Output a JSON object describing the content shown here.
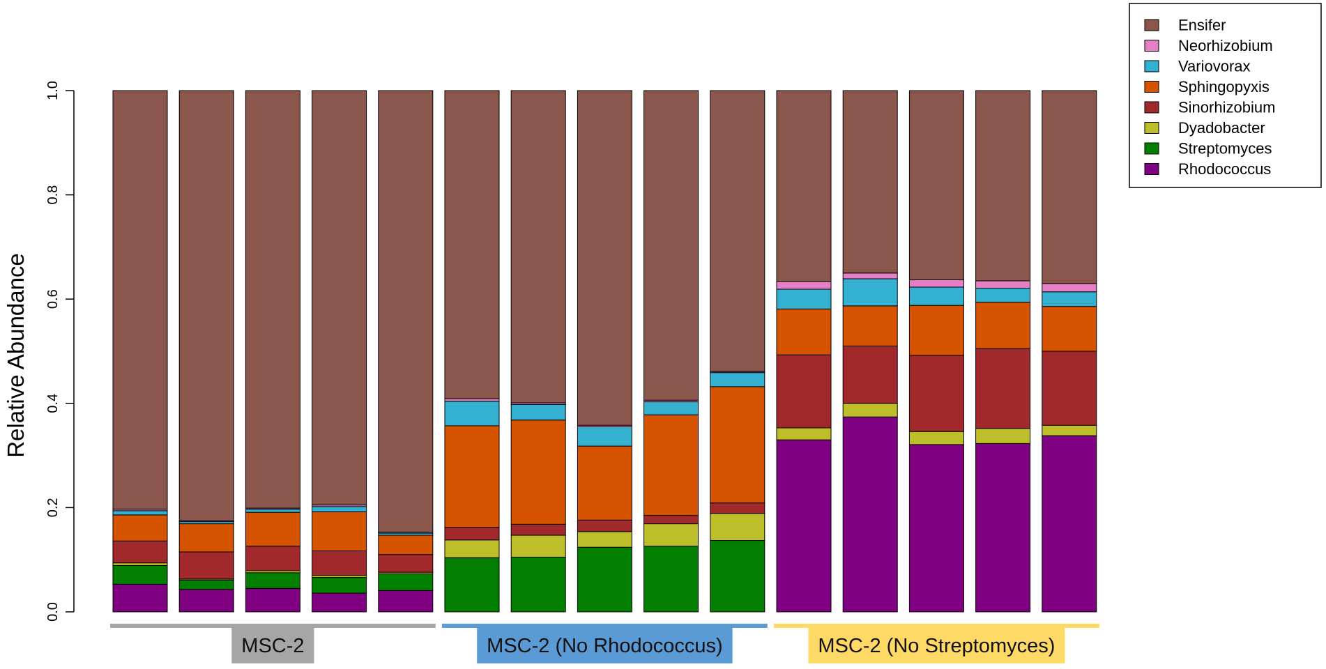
{
  "chart_data": {
    "type": "bar",
    "stacked": true,
    "ylabel": "Relative Abundance",
    "ylim": [
      0,
      1
    ],
    "yticks": [
      "0.0",
      "0.2",
      "0.4",
      "0.6",
      "0.8",
      "1.0"
    ],
    "legend_position": "top-right, outside plot",
    "legend": [
      {
        "name": "Ensifer",
        "color": "#8B564C"
      },
      {
        "name": "Neorhizobium",
        "color": "#E57FC6"
      },
      {
        "name": "Variovorax",
        "color": "#34B1D0"
      },
      {
        "name": "Sphingopyxis",
        "color": "#D65400"
      },
      {
        "name": "Sinorhizobium",
        "color": "#A1282B"
      },
      {
        "name": "Dyadobacter",
        "color": "#BEBE2A"
      },
      {
        "name": "Streptomyces",
        "color": "#027F00"
      },
      {
        "name": "Rhodococcus",
        "color": "#7F0080"
      }
    ],
    "stack_order_bottom_to_top": [
      "Rhodococcus",
      "Streptomyces",
      "Dyadobacter",
      "Sinorhizobium",
      "Sphingopyxis",
      "Variovorax",
      "Neorhizobium",
      "Ensifer"
    ],
    "groups": [
      {
        "label": "MSC-2",
        "color": "#A6A6A6",
        "bars": [
          0,
          1,
          2,
          3,
          4
        ]
      },
      {
        "label": "MSC-2 (No Rhodococcus)",
        "color": "#5B9BD5",
        "bars": [
          5,
          6,
          7,
          8,
          9
        ]
      },
      {
        "label": "MSC-2 (No Streptomyces)",
        "color": "#FFD966",
        "bars": [
          10,
          11,
          12,
          13,
          14
        ]
      }
    ],
    "bars": [
      {
        "Rhodococcus": 0.053,
        "Streptomyces": 0.036,
        "Dyadobacter": 0.005,
        "Sinorhizobium": 0.042,
        "Sphingopyxis": 0.05,
        "Variovorax": 0.008,
        "Neorhizobium": 0.003,
        "Ensifer": 0.803
      },
      {
        "Rhodococcus": 0.043,
        "Streptomyces": 0.018,
        "Dyadobacter": 0.002,
        "Sinorhizobium": 0.052,
        "Sphingopyxis": 0.054,
        "Variovorax": 0.004,
        "Neorhizobium": 0.002,
        "Ensifer": 0.825
      },
      {
        "Rhodococcus": 0.045,
        "Streptomyces": 0.03,
        "Dyadobacter": 0.004,
        "Sinorhizobium": 0.047,
        "Sphingopyxis": 0.065,
        "Variovorax": 0.006,
        "Neorhizobium": 0.002,
        "Ensifer": 0.801
      },
      {
        "Rhodococcus": 0.036,
        "Streptomyces": 0.03,
        "Dyadobacter": 0.004,
        "Sinorhizobium": 0.047,
        "Sphingopyxis": 0.075,
        "Variovorax": 0.01,
        "Neorhizobium": 0.003,
        "Ensifer": 0.795
      },
      {
        "Rhodococcus": 0.041,
        "Streptomyces": 0.032,
        "Dyadobacter": 0.003,
        "Sinorhizobium": 0.034,
        "Sphingopyxis": 0.037,
        "Variovorax": 0.004,
        "Neorhizobium": 0.002,
        "Ensifer": 0.847
      },
      {
        "Rhodococcus": 0.0,
        "Streptomyces": 0.104,
        "Dyadobacter": 0.034,
        "Sinorhizobium": 0.024,
        "Sphingopyxis": 0.195,
        "Variovorax": 0.047,
        "Neorhizobium": 0.005,
        "Ensifer": 0.591
      },
      {
        "Rhodococcus": 0.0,
        "Streptomyces": 0.105,
        "Dyadobacter": 0.042,
        "Sinorhizobium": 0.021,
        "Sphingopyxis": 0.2,
        "Variovorax": 0.03,
        "Neorhizobium": 0.003,
        "Ensifer": 0.599
      },
      {
        "Rhodococcus": 0.0,
        "Streptomyces": 0.124,
        "Dyadobacter": 0.03,
        "Sinorhizobium": 0.022,
        "Sphingopyxis": 0.142,
        "Variovorax": 0.037,
        "Neorhizobium": 0.003,
        "Ensifer": 0.642
      },
      {
        "Rhodococcus": 0.0,
        "Streptomyces": 0.126,
        "Dyadobacter": 0.043,
        "Sinorhizobium": 0.016,
        "Sphingopyxis": 0.193,
        "Variovorax": 0.025,
        "Neorhizobium": 0.003,
        "Ensifer": 0.594
      },
      {
        "Rhodococcus": 0.0,
        "Streptomyces": 0.137,
        "Dyadobacter": 0.052,
        "Sinorhizobium": 0.02,
        "Sphingopyxis": 0.223,
        "Variovorax": 0.027,
        "Neorhizobium": 0.002,
        "Ensifer": 0.539
      },
      {
        "Rhodococcus": 0.33,
        "Streptomyces": 0.0,
        "Dyadobacter": 0.023,
        "Sinorhizobium": 0.14,
        "Sphingopyxis": 0.088,
        "Variovorax": 0.038,
        "Neorhizobium": 0.015,
        "Ensifer": 0.366
      },
      {
        "Rhodococcus": 0.374,
        "Streptomyces": 0.0,
        "Dyadobacter": 0.026,
        "Sinorhizobium": 0.11,
        "Sphingopyxis": 0.077,
        "Variovorax": 0.052,
        "Neorhizobium": 0.011,
        "Ensifer": 0.35
      },
      {
        "Rhodococcus": 0.321,
        "Streptomyces": 0.0,
        "Dyadobacter": 0.025,
        "Sinorhizobium": 0.146,
        "Sphingopyxis": 0.096,
        "Variovorax": 0.035,
        "Neorhizobium": 0.014,
        "Ensifer": 0.363
      },
      {
        "Rhodococcus": 0.323,
        "Streptomyces": 0.0,
        "Dyadobacter": 0.029,
        "Sinorhizobium": 0.153,
        "Sphingopyxis": 0.089,
        "Variovorax": 0.027,
        "Neorhizobium": 0.014,
        "Ensifer": 0.365
      },
      {
        "Rhodococcus": 0.338,
        "Streptomyces": 0.0,
        "Dyadobacter": 0.02,
        "Sinorhizobium": 0.142,
        "Sphingopyxis": 0.086,
        "Variovorax": 0.028,
        "Neorhizobium": 0.016,
        "Ensifer": 0.37
      }
    ]
  }
}
